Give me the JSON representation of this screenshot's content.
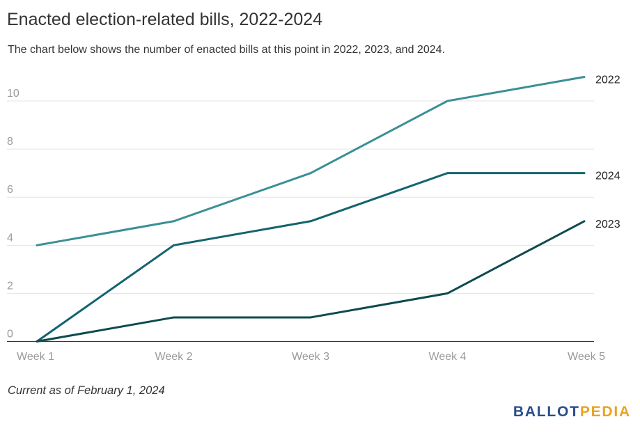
{
  "header": {
    "title": "Enacted election-related bills, 2022-2024",
    "subtitle": "The chart below shows the number of enacted bills at this point in 2022, 2023, and 2024."
  },
  "chart_data": {
    "type": "line",
    "categories": [
      "Week 1",
      "Week 2",
      "Week 3",
      "Week 4",
      "Week 5"
    ],
    "series": [
      {
        "name": "2022",
        "values": [
          4,
          5,
          7,
          10,
          11
        ],
        "color": "#3a8f96"
      },
      {
        "name": "2024",
        "values": [
          0,
          4,
          5,
          7,
          7
        ],
        "color": "#13646e"
      },
      {
        "name": "2023",
        "values": [
          0,
          1,
          1,
          2,
          5
        ],
        "color": "#0e4a4e"
      }
    ],
    "yticks": [
      0,
      2,
      4,
      6,
      8,
      10
    ],
    "ylim": [
      0,
      11
    ],
    "grid": true,
    "legend": "direct-labels-right"
  },
  "footer": {
    "note": "Current as of February 1, 2024",
    "logo_part1": "BALLOT",
    "logo_part2": "PEDIA"
  }
}
